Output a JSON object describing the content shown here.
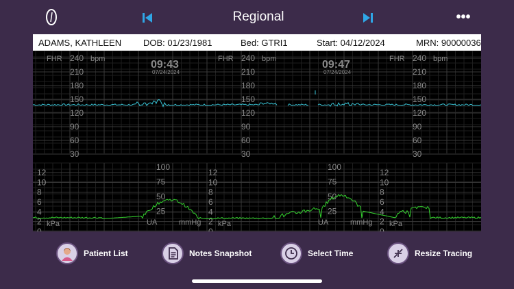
{
  "header": {
    "title": "Regional",
    "more_label": "•••"
  },
  "patient": {
    "name": "ADAMS, KATHLEEN",
    "dob": "DOB: 01/23/1981",
    "bed": "Bed: GTRI1",
    "start": "Start: 04/12/2024",
    "mrn": "MRN: 90000036"
  },
  "fhr_panel": {
    "label": "FHR",
    "unit": "bpm",
    "ticks": [
      "240",
      "210",
      "180",
      "150",
      "120",
      "90",
      "60",
      "30"
    ],
    "time_marks": [
      {
        "time": "09:43",
        "date": "07/24/2024"
      },
      {
        "time": "09:47",
        "date": "07/24/2024"
      }
    ]
  },
  "ua_panel": {
    "kpa_ticks": [
      "12",
      "10",
      "8",
      "6",
      "4",
      "2",
      "0"
    ],
    "kpa_unit": "kPa",
    "mmhg_ticks": [
      "100",
      "75",
      "50",
      "25"
    ],
    "mmhg_unit": "mmHg",
    "ua_label": "UA"
  },
  "toolbar": {
    "patient_list": "Patient List",
    "notes_snapshot": "Notes Snapshot",
    "select_time": "Select Time",
    "resize_tracing": "Resize Tracing"
  },
  "colors": {
    "background": "#3c2b4a",
    "fhr_trace": "#39c6d8",
    "ua_trace": "#35d62f",
    "grid": "#3a3a3a"
  }
}
